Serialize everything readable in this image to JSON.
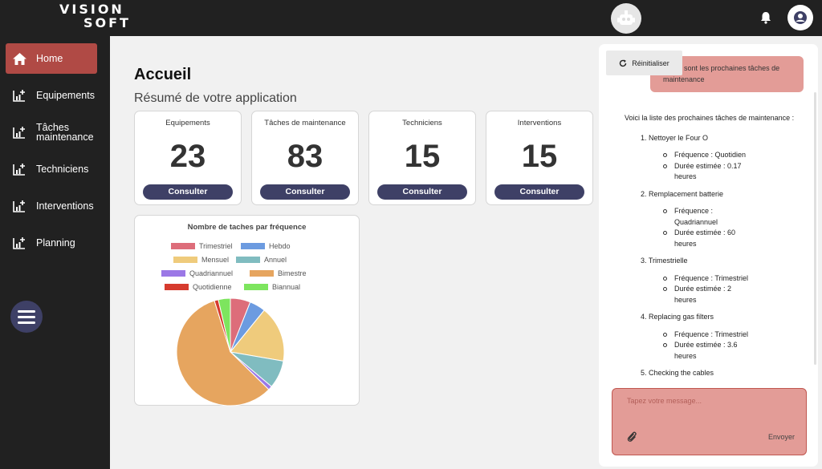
{
  "brand": {
    "line1": "VISION",
    "line2": "SOFT"
  },
  "header": {
    "robot_icon": "robot-icon",
    "notification_icon": "bell-icon",
    "account_icon": "user-circle-icon"
  },
  "sidebar": {
    "items": [
      {
        "label": "Home",
        "icon": "home-icon",
        "active": true
      },
      {
        "label": "Equipements",
        "icon": "chart-add-icon"
      },
      {
        "label": "Tâches maintenance",
        "icon": "chart-add-icon"
      },
      {
        "label": "Techniciens",
        "icon": "chart-add-icon"
      },
      {
        "label": "Interventions",
        "icon": "chart-add-icon"
      },
      {
        "label": "Planning",
        "icon": "chart-add-icon"
      }
    ],
    "menu_icon": "hamburger-icon"
  },
  "main": {
    "title": "Accueil",
    "subtitle": "Résumé de votre application",
    "cards": [
      {
        "title": "Equipements",
        "value": "23",
        "button": "Consulter"
      },
      {
        "title": "Tâches de maintenance",
        "value": "83",
        "button": "Consulter"
      },
      {
        "title": "Techniciens",
        "value": "15",
        "button": "Consulter"
      },
      {
        "title": "Interventions",
        "value": "15",
        "button": "Consulter"
      }
    ]
  },
  "chart_data": {
    "type": "pie",
    "title": "Nombre de taches par fréquence",
    "legend_position": "top",
    "slices": [
      {
        "label": "Trimestriel",
        "value": 5,
        "color": "#dd6d7a"
      },
      {
        "label": "Hebdo",
        "value": 4,
        "color": "#6c9be0"
      },
      {
        "label": "Mensuel",
        "value": 14,
        "color": "#efcb7c"
      },
      {
        "label": "Annuel",
        "value": 7,
        "color": "#80bcc0"
      },
      {
        "label": "Quadriannuel",
        "value": 1,
        "color": "#9b78e6"
      },
      {
        "label": "Bimestre",
        "value": 48,
        "color": "#e6a55f"
      },
      {
        "label": "Quotidienne",
        "value": 1,
        "color": "#d63b2e"
      },
      {
        "label": "Biannual",
        "value": 3,
        "color": "#7de55e"
      }
    ]
  },
  "chat": {
    "reset_label": "Réinitialiser",
    "user_message": "Quels sont les prochaines tâches de maintenance",
    "bot_intro": "Voici la liste des prochaines tâches de maintenance :",
    "tasks": [
      {
        "title": "1. Nettoyer le Four O",
        "details": [
          "Fréquence : Quotidien",
          "Durée estimée : 0.17 heures"
        ]
      },
      {
        "title": "2. Remplacement batterie",
        "details": [
          "Fréquence : Quadriannuel",
          "Durée estimée : 60 heures"
        ]
      },
      {
        "title": "3. Trimestrielle",
        "details": [
          "Fréquence : Trimestriel",
          "Durée estimée : 2 heures"
        ]
      },
      {
        "title": "4. Replacing gas filters",
        "details": [
          "Fréquence : Trimestriel",
          "Durée estimée : 3.6 heures"
        ]
      },
      {
        "title": "5. Checking the cables",
        "details": []
      }
    ],
    "input_placeholder": "Tapez votre message...",
    "send_label": "Envoyer",
    "attach_icon": "paperclip-icon"
  }
}
